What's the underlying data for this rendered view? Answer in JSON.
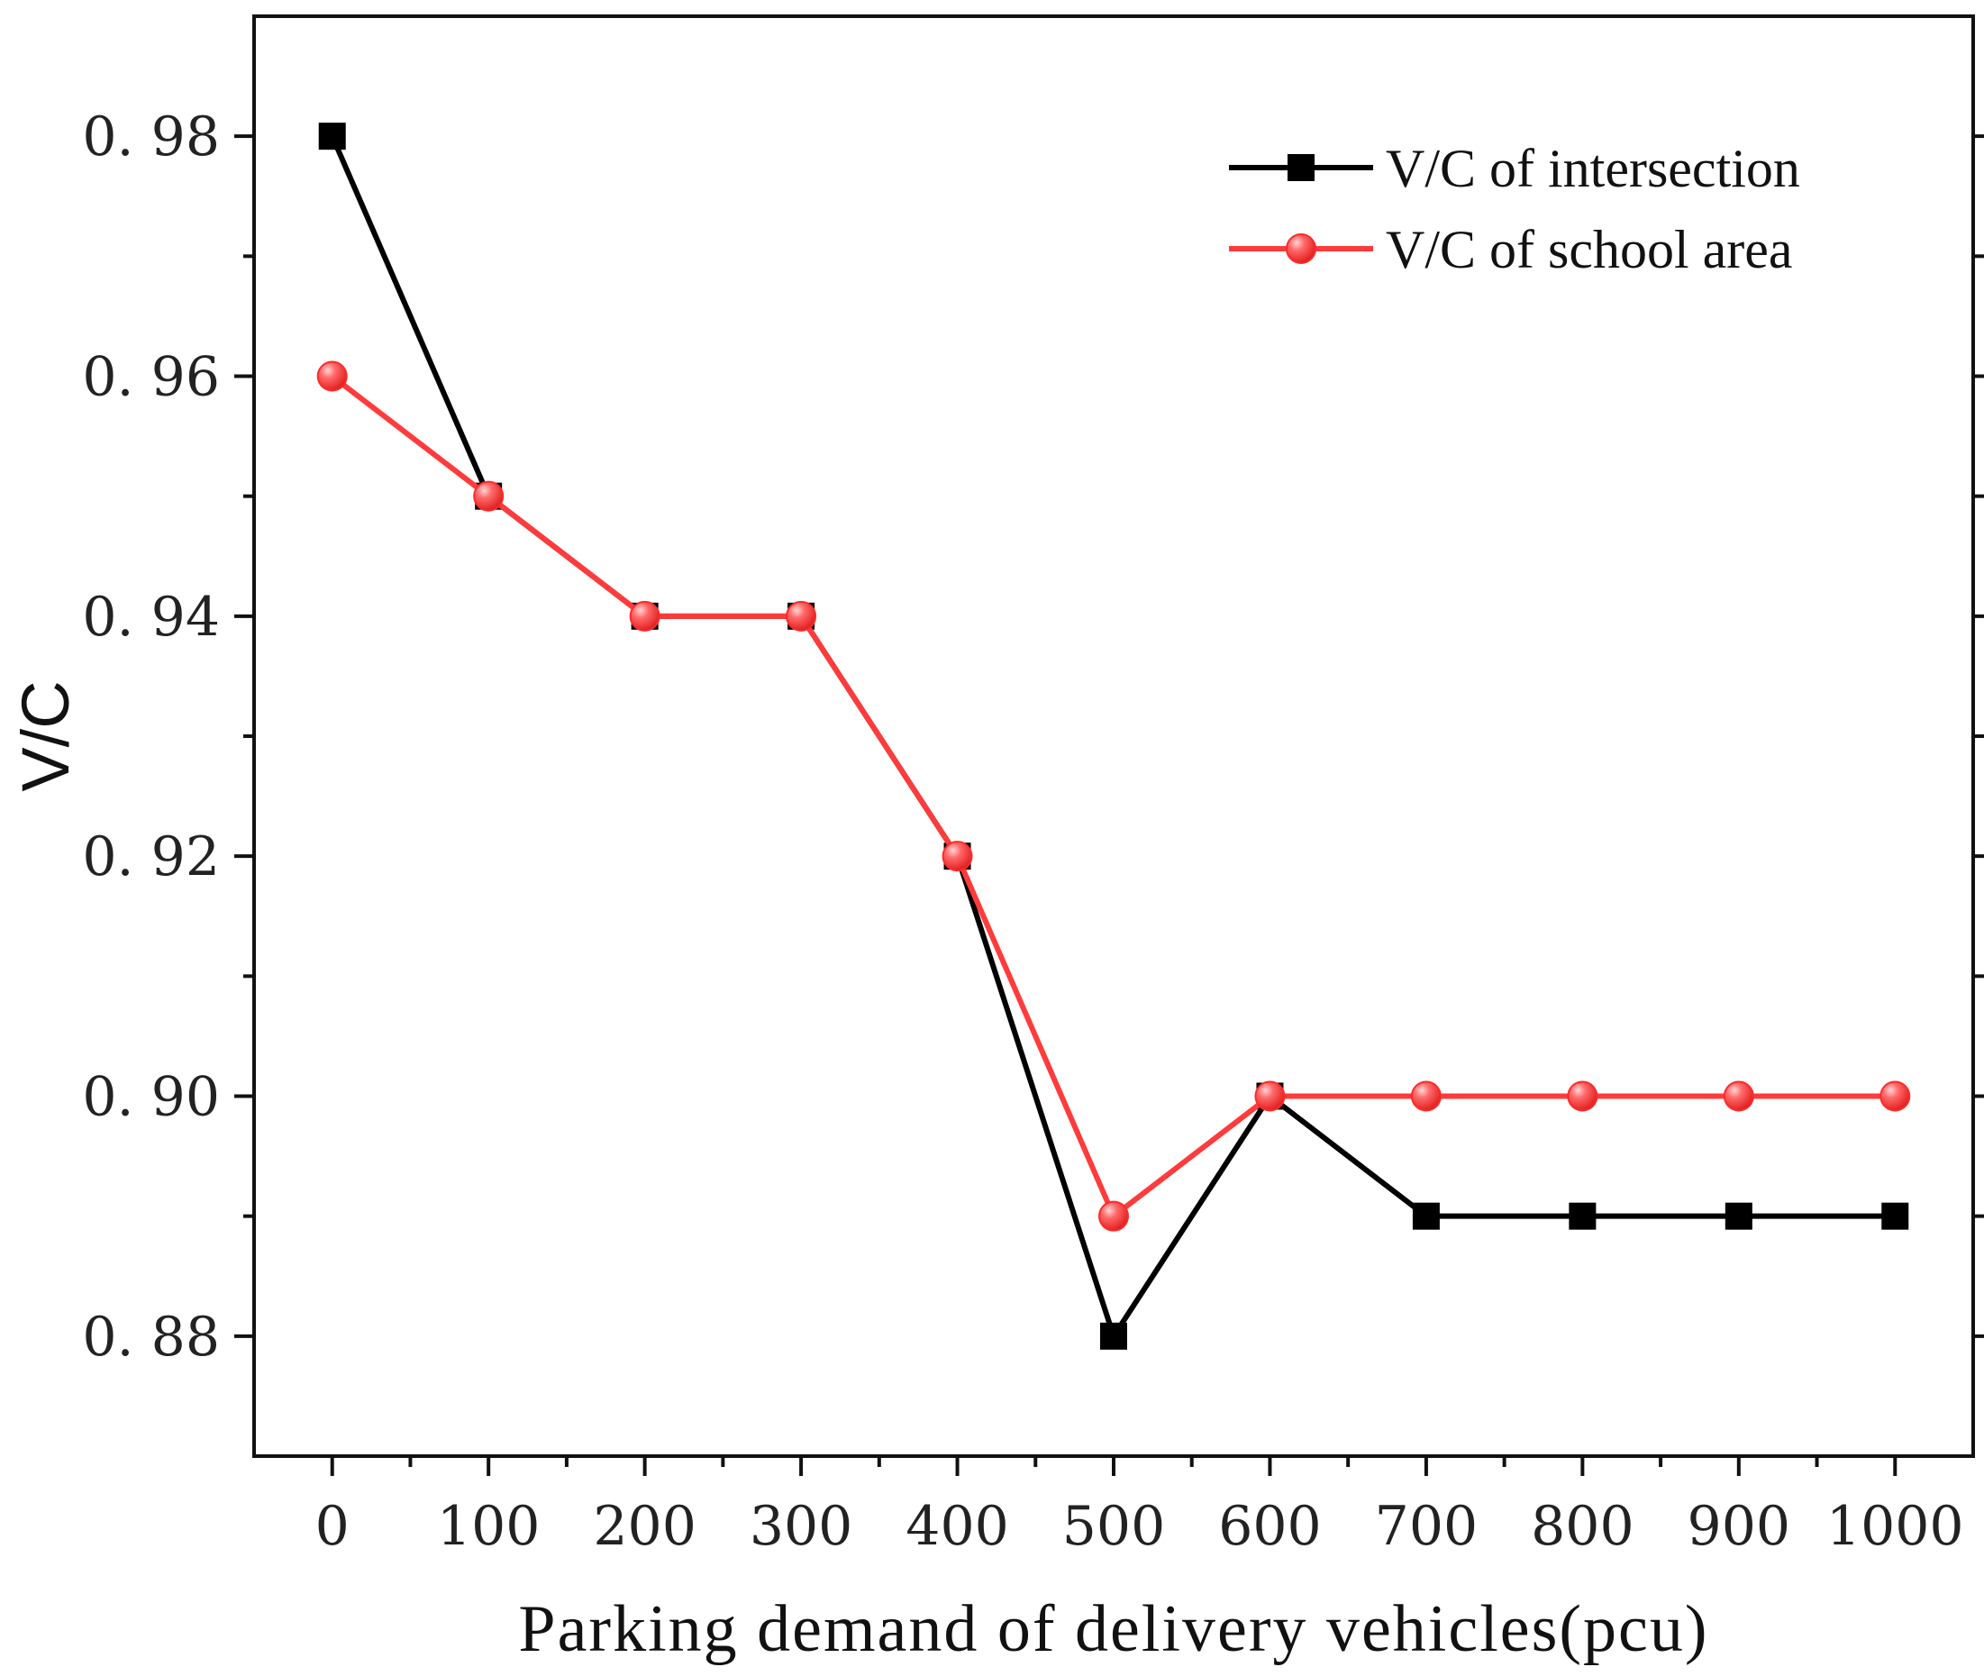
{
  "chart_data": {
    "type": "line",
    "xlabel": "Parking demand of delivery vehicles(pcu)",
    "ylabel": "V/C",
    "x": [
      0,
      100,
      200,
      300,
      400,
      500,
      600,
      700,
      800,
      900,
      1000
    ],
    "x_ticks": [
      "0",
      "100",
      "200",
      "300",
      "400",
      "500",
      "600",
      "700",
      "800",
      "900",
      "1000"
    ],
    "y_ticks": [
      {
        "value": 0.88,
        "label": "0. 88"
      },
      {
        "value": 0.9,
        "label": "0. 90"
      },
      {
        "value": 0.92,
        "label": "0. 92"
      },
      {
        "value": 0.94,
        "label": "0. 94"
      },
      {
        "value": 0.96,
        "label": "0. 96"
      },
      {
        "value": 0.98,
        "label": "0. 98"
      }
    ],
    "xlim": [
      -50,
      1050
    ],
    "ylim": [
      0.87,
      0.99
    ],
    "grid": false,
    "legend_position": "top-right",
    "series": [
      {
        "name": "V/C of intersection",
        "color": "#000000",
        "marker": "square",
        "values": [
          0.98,
          0.95,
          0.94,
          0.94,
          0.92,
          0.88,
          0.9,
          0.89,
          0.89,
          0.89,
          0.89
        ]
      },
      {
        "name": "V/C of school area",
        "color": "#ff3b3b",
        "marker": "circle",
        "values": [
          0.96,
          0.95,
          0.94,
          0.94,
          0.92,
          0.89,
          0.9,
          0.9,
          0.9,
          0.9,
          0.9
        ]
      }
    ]
  }
}
